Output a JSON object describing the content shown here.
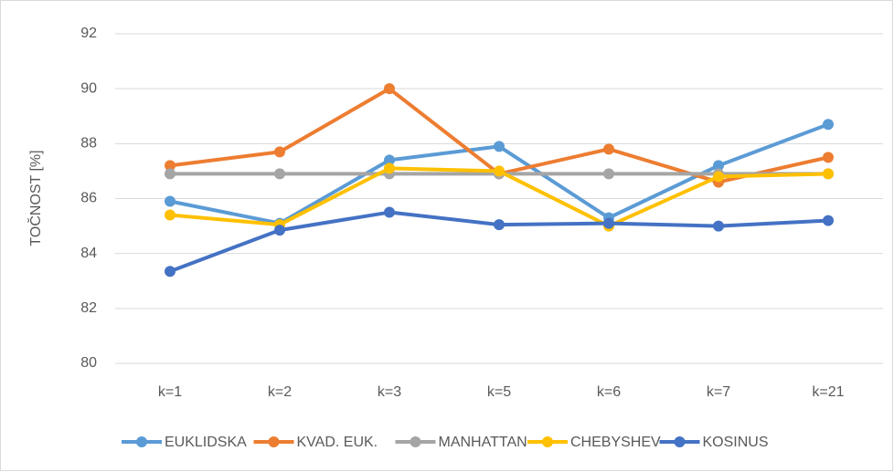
{
  "chart_data": {
    "type": "line",
    "y_label": "TOČNOST [%]",
    "categories": [
      "k=1",
      "k=2",
      "k=3",
      "k=5",
      "k=6",
      "k=7",
      "k=21"
    ],
    "ylim": [
      80,
      92
    ],
    "yticks": [
      80,
      82,
      84,
      86,
      88,
      90,
      92
    ],
    "grid": true,
    "series": [
      {
        "name": "EUKLIDSKA",
        "color": "#5b9bd5",
        "values": [
          85.9,
          85.1,
          87.4,
          87.9,
          85.3,
          87.2,
          88.7
        ]
      },
      {
        "name": "KVAD. EUK.",
        "color": "#ed7d31",
        "values": [
          87.2,
          87.7,
          90.0,
          86.9,
          87.8,
          86.6,
          87.5
        ]
      },
      {
        "name": "MANHATTAN",
        "color": "#a5a5a5",
        "values": [
          86.9,
          86.9,
          86.9,
          86.9,
          86.9,
          86.9,
          86.9
        ]
      },
      {
        "name": "CHEBYSHEV",
        "color": "#ffc000",
        "values": [
          85.4,
          85.05,
          87.1,
          87.0,
          85.0,
          86.8,
          86.9
        ]
      },
      {
        "name": "KOSINUS",
        "color": "#4472c4",
        "values": [
          83.35,
          84.85,
          85.5,
          85.05,
          85.1,
          85.0,
          85.2
        ]
      }
    ]
  }
}
